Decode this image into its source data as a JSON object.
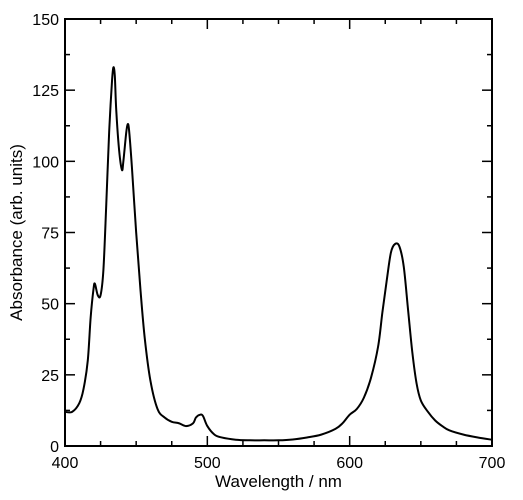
{
  "chart_data": {
    "type": "line",
    "xlabel": "Wavelength / nm",
    "ylabel": "Absorbance (arb. units)",
    "xlim": [
      400,
      700
    ],
    "ylim": [
      0,
      150
    ],
    "x_major_ticks": [
      400,
      500,
      600,
      700
    ],
    "y_major_ticks": [
      0,
      25,
      50,
      75,
      100,
      125,
      150
    ],
    "x_minor_step": 25,
    "y_minor_step": 12.5,
    "grid": false,
    "legend": "none",
    "line_color": "#000000",
    "series": [
      {
        "x": [
          400,
          405,
          410,
          413,
          416,
          418,
          420,
          421,
          423,
          425,
          427,
          429,
          431,
          433,
          434,
          435,
          436,
          438,
          440,
          441,
          443,
          444,
          445,
          447,
          450,
          453,
          456,
          460,
          465,
          470,
          475,
          480,
          485,
          490,
          492,
          495,
          497,
          500,
          505,
          510,
          520,
          530,
          540,
          550,
          560,
          570,
          580,
          590,
          595,
          600,
          605,
          610,
          615,
          620,
          623,
          626,
          629,
          632,
          635,
          638,
          641,
          644,
          647,
          650,
          655,
          660,
          665,
          670,
          680,
          690,
          700
        ],
        "y": [
          12,
          12,
          15,
          20,
          30,
          45,
          55,
          57,
          53,
          53,
          62,
          85,
          110,
          128,
          133,
          130,
          118,
          104,
          97,
          100,
          110,
          113,
          111,
          98,
          75,
          55,
          38,
          23,
          13,
          10,
          8.5,
          8,
          7,
          8,
          10,
          11,
          10.5,
          7,
          4,
          3,
          2.2,
          2,
          2,
          2,
          2.3,
          3,
          4,
          6,
          8,
          11,
          13,
          17,
          24,
          35,
          47,
          58,
          68,
          71,
          70,
          63,
          48,
          33,
          22,
          16,
          12,
          9,
          7,
          5.5,
          4,
          3,
          2.2
        ]
      }
    ]
  }
}
